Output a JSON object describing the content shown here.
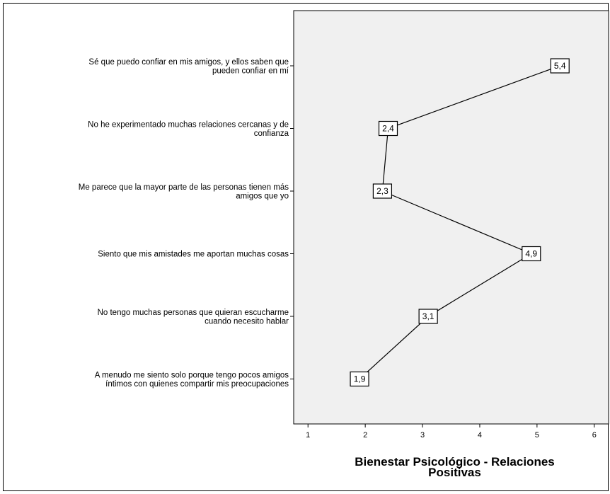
{
  "chart_data": {
    "type": "line",
    "orientation": "horizontal",
    "categories": [
      "Sé que puedo confiar en mis amigos, y ellos saben que pueden confiar en mí",
      "No he experimentado muchas relaciones cercanas y de confianza",
      "Me parece que la mayor parte de las personas tienen más amigos que yo",
      "Siento que mis amistades me aportan muchas cosas",
      "No tengo muchas personas que quieran escucharme cuando necesito hablar",
      "A menudo me siento solo porque tengo pocos amigos íntimos con quienes compartir mis preocupaciones"
    ],
    "category_label_lines": [
      [
        "Sé que puedo confiar en mis amigos, y ellos saben que",
        "pueden confiar en mí"
      ],
      [
        "No he experimentado muchas relaciones cercanas y de",
        "confianza"
      ],
      [
        "Me parece que la mayor parte de las personas tienen más",
        "amigos que yo"
      ],
      [
        "Siento que mis amistades me aportan muchas cosas"
      ],
      [
        "No tengo muchas personas que quieran escucharme",
        "cuando necesito hablar"
      ],
      [
        "A menudo me siento solo porque tengo pocos amigos",
        "íntimos con quienes compartir mis preocupaciones"
      ]
    ],
    "values": [
      5.4,
      2.4,
      2.3,
      4.9,
      3.1,
      1.9
    ],
    "data_labels": [
      "5,4",
      "2,4",
      "2,3",
      "4,9",
      "3,1",
      "1,9"
    ],
    "xlabel_lines": [
      "Bienestar Psicológico - Relaciones",
      "Positivas"
    ],
    "xticks": [
      1,
      2,
      3,
      4,
      5,
      6
    ],
    "xlim": [
      0.75,
      6.25
    ],
    "grid": false,
    "colors": {
      "plot_background": "#f0f0f0",
      "line": "#000000",
      "marker_fill": "#ffffff"
    }
  }
}
